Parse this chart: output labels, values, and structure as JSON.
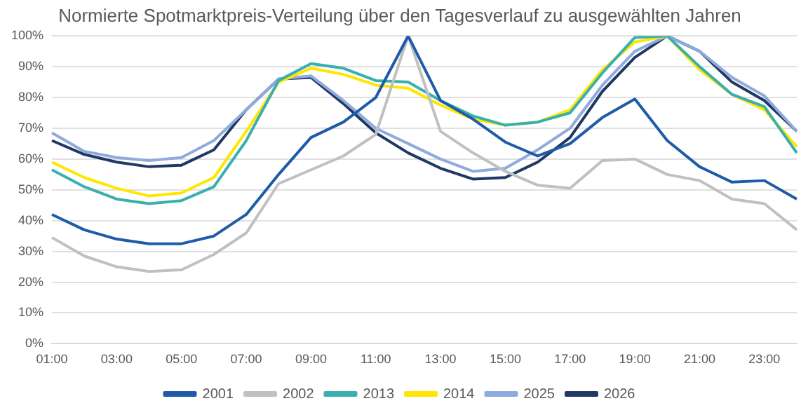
{
  "chart_data": {
    "type": "line",
    "title": "Normierte Spotmarktpreis-Verteilung über den Tagesverlauf zu ausgewählten Jahren",
    "categories": [
      "01:00",
      null,
      "03:00",
      null,
      "05:00",
      null,
      "07:00",
      null,
      "09:00",
      null,
      "11:00",
      null,
      "13:00",
      null,
      "15:00",
      null,
      "17:00",
      null,
      "19:00",
      null,
      "21:00",
      null,
      "23:00",
      null
    ],
    "series": [
      {
        "name": "2001",
        "color": "#1f5ba8",
        "values": [
          42,
          37,
          34,
          32.5,
          32.5,
          35,
          42,
          55,
          67,
          72,
          80,
          100,
          79,
          73,
          65.5,
          61,
          65,
          73.5,
          79.5,
          66,
          57.5,
          52.5,
          53,
          47
        ]
      },
      {
        "name": "2002",
        "color": "#c0c0c0",
        "values": [
          34.5,
          28.5,
          25,
          23.5,
          24,
          29,
          36,
          52,
          56.5,
          61,
          68,
          100,
          69,
          62,
          56,
          51.5,
          50.5,
          59.5,
          60,
          55,
          53,
          47,
          45.5,
          37
        ]
      },
      {
        "name": "2013",
        "color": "#3aafaf",
        "values": [
          56.5,
          51,
          47,
          45.5,
          46.5,
          51,
          66,
          85.5,
          91,
          89.5,
          85.5,
          85,
          79,
          74,
          71,
          72,
          75,
          88,
          99.5,
          100,
          90,
          81,
          77,
          62
        ]
      },
      {
        "name": "2014",
        "color": "#ffe600",
        "values": [
          59,
          54,
          50.5,
          48,
          49,
          54,
          69,
          85,
          89.5,
          87.5,
          84,
          83,
          77.5,
          73,
          71,
          72,
          76,
          89,
          98,
          100,
          89,
          81,
          76,
          64
        ]
      },
      {
        "name": "2025",
        "color": "#8faadc",
        "values": [
          68.5,
          62.5,
          60.5,
          59.5,
          60.5,
          66,
          76,
          86,
          87,
          79,
          70,
          65,
          60,
          56,
          57,
          63,
          70,
          84,
          95,
          100,
          95,
          86.5,
          80.5,
          69
        ]
      },
      {
        "name": "2026",
        "color": "#203864",
        "values": [
          66,
          61.5,
          59,
          57.5,
          58,
          63,
          76,
          86,
          86.5,
          78,
          68.5,
          62,
          57,
          53.5,
          54,
          59,
          67,
          82,
          93,
          100,
          95,
          85,
          79,
          69
        ]
      }
    ],
    "ylim": [
      0,
      100
    ],
    "yticks": [
      {
        "value": 0,
        "label": "0%"
      },
      {
        "value": 10,
        "label": "10%"
      },
      {
        "value": 20,
        "label": "20%"
      },
      {
        "value": 30,
        "label": "30%"
      },
      {
        "value": 40,
        "label": "40%"
      },
      {
        "value": 50,
        "label": "50%"
      },
      {
        "value": 60,
        "label": "60%"
      },
      {
        "value": 70,
        "label": "70%"
      },
      {
        "value": 80,
        "label": "80%"
      },
      {
        "value": 90,
        "label": "90%"
      },
      {
        "value": 100,
        "label": "100%"
      }
    ],
    "grid": "y",
    "legend": "bottom",
    "marker": "none",
    "line_style": "solid"
  }
}
